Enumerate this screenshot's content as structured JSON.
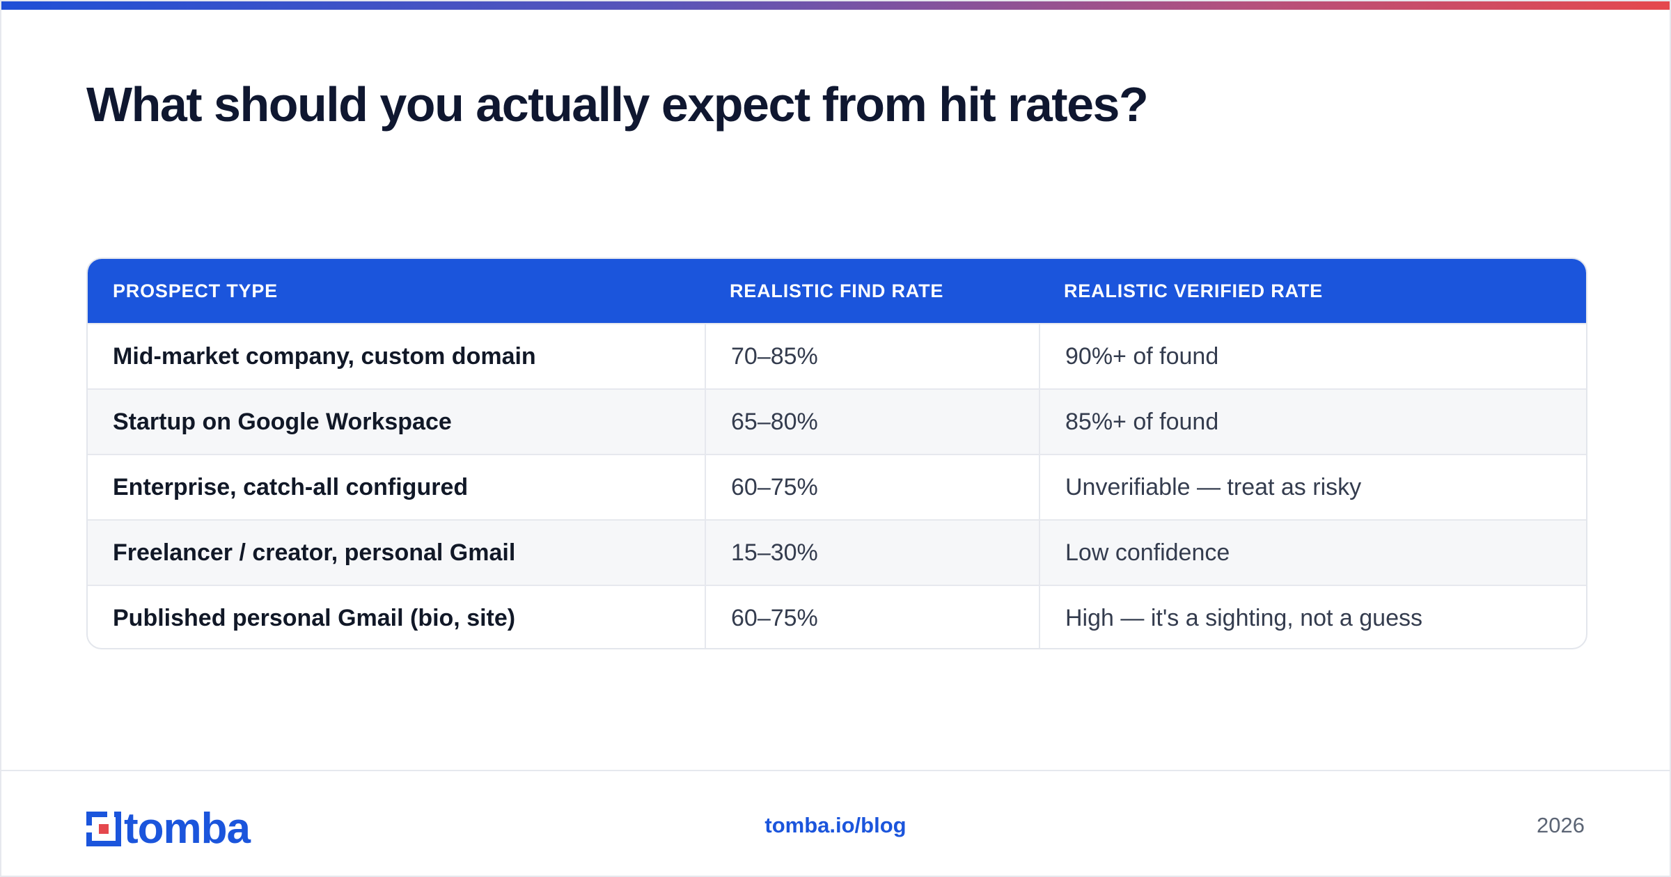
{
  "title": "What should you actually expect from hit rates?",
  "table": {
    "headers": [
      "PROSPECT TYPE",
      "REALISTIC FIND RATE",
      "REALISTIC VERIFIED RATE"
    ],
    "rows": [
      [
        "Mid-market company, custom domain",
        "70–85%",
        "90%+ of found"
      ],
      [
        "Startup on Google Workspace",
        "65–80%",
        "85%+ of found"
      ],
      [
        "Enterprise, catch-all configured",
        "60–75%",
        "Unverifiable — treat as risky"
      ],
      [
        "Freelancer / creator, personal Gmail",
        "15–30%",
        "Low confidence"
      ],
      [
        "Published personal Gmail (bio, site)",
        "60–75%",
        "High — it's a sighting, not a guess"
      ]
    ]
  },
  "footer": {
    "logo_text": "tomba",
    "link": "tomba.io/blog",
    "year": "2026"
  },
  "colors": {
    "brand_blue": "#1b55dc",
    "brand_red": "#e5484d",
    "title": "#0f1730"
  }
}
